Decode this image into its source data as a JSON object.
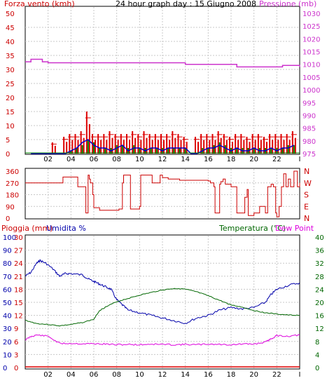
{
  "title": "24 hour graph day : 15 Giugno 2008",
  "colors": {
    "wind": "#dd0000",
    "gust": "#dd0000",
    "wind_avg": "#008800",
    "wind_speed_line": "#0000cc",
    "pressure": "#cc33cc",
    "direction": "#cc0000",
    "rain": "#dd0000",
    "humidity": "#0000aa",
    "temperature": "#006600",
    "dewpoint": "#dd00dd",
    "grid": "#c8c8c8"
  },
  "chart_data": [
    {
      "type": "bar",
      "title": "24 hour graph day : 15 Giugno 2008",
      "ylabel": "Forza vento (kmh)",
      "y2label": "Pressione (mb)",
      "ylim": [
        0,
        50
      ],
      "yticks": [
        "0",
        "5",
        "10",
        "15",
        "20",
        "25",
        "30",
        "35",
        "40",
        "45",
        "50"
      ],
      "y2lim": [
        975,
        1030
      ],
      "y2ticks": [
        "975",
        "980",
        "985",
        "990",
        "995",
        "1000",
        "1005",
        "1010",
        "1015",
        "1020",
        "1025",
        "1030"
      ],
      "xlim": [
        0,
        24
      ],
      "xticks": [
        "02",
        "04",
        "06",
        "08",
        "10",
        "12",
        "14",
        "16",
        "18",
        "20",
        "22"
      ],
      "x": [
        0.5,
        1,
        1.5,
        2,
        2.5,
        3,
        3.5,
        4,
        4.5,
        5,
        5.5,
        6,
        6.5,
        7,
        7.5,
        8,
        8.5,
        9,
        9.5,
        10,
        10.5,
        11,
        11.5,
        12,
        12.5,
        13,
        13.5,
        14,
        14.5,
        15,
        15.5,
        16,
        16.5,
        17,
        17.5,
        18,
        18.5,
        19,
        19.5,
        20,
        20.5,
        21,
        21.5,
        22,
        22.5,
        23,
        23.5
      ],
      "series": [
        {
          "name": "gust",
          "values": [
            0,
            0,
            0,
            0,
            4,
            0,
            6,
            7,
            7,
            8,
            15,
            7,
            7,
            7,
            8,
            7,
            7,
            7,
            8,
            7,
            8,
            7,
            7,
            7,
            7,
            8,
            7,
            6,
            0,
            6,
            7,
            7,
            7,
            8,
            7,
            6,
            7,
            7,
            6,
            7,
            7,
            6,
            7,
            7,
            7,
            7,
            8
          ]
        },
        {
          "name": "avg",
          "values": [
            0,
            0,
            0,
            0,
            0,
            0,
            0,
            1,
            2,
            3,
            5,
            4,
            2,
            2,
            2,
            3,
            3,
            2,
            3,
            2,
            2,
            2,
            2,
            2,
            2,
            2,
            2,
            2,
            0,
            0,
            2,
            2,
            3,
            4,
            3,
            2,
            2,
            2,
            2,
            2,
            2,
            2,
            2,
            2,
            2,
            3,
            3
          ]
        },
        {
          "name": "speed",
          "values": [
            0,
            0,
            0,
            0,
            0,
            0,
            0,
            1,
            2,
            4,
            5,
            3,
            2,
            2,
            1,
            2,
            3,
            1,
            2,
            2,
            1,
            2,
            2,
            1,
            2,
            2,
            2,
            2,
            0,
            0,
            1,
            2,
            2,
            3,
            2,
            1,
            2,
            1,
            1,
            2,
            1,
            1,
            2,
            1,
            2,
            2,
            3
          ]
        }
      ],
      "pressure": {
        "x": [
          0,
          0.5,
          1,
          1.5,
          2,
          5,
          10,
          13.5,
          14,
          18,
          18.5,
          22,
          22.5,
          23.5,
          24
        ],
        "values": [
          1011,
          1012,
          1012,
          1011,
          1010.6,
          1010.6,
          1010.6,
          1010.6,
          1010,
          1010,
          1009,
          1009,
          1009.6,
          1009.6,
          1009
        ]
      }
    },
    {
      "type": "line",
      "title": "",
      "ylabel": "",
      "ylim": [
        0,
        360
      ],
      "yticks": [
        "0",
        "90",
        "180",
        "270",
        "360"
      ],
      "y2ticks": [
        "N",
        "E",
        "S",
        "W",
        "N"
      ],
      "xlim": [
        0,
        24
      ],
      "series": [
        {
          "name": "direction",
          "x": [
            0,
            3,
            3.3,
            4.5,
            4.6,
            5.2,
            5.3,
            5.5,
            5.6,
            5.7,
            5.9,
            6,
            6.5,
            8,
            8.2,
            8.5,
            8.6,
            9.1,
            9.2,
            9.9,
            10,
            10.1,
            11,
            11.1,
            11.7,
            11.8,
            12,
            12.5,
            13.5,
            14,
            15,
            16,
            16.2,
            16.5,
            16.6,
            17,
            17.1,
            17.3,
            17.5,
            18,
            18.5,
            19,
            19.2,
            19.4,
            19.5,
            20,
            20.5,
            21,
            21.2,
            21.5,
            21.7,
            21.9,
            22,
            22.2,
            22.4,
            22.6,
            22.8,
            23,
            23.2,
            23.5,
            23.8,
            24
          ],
          "values": [
            270,
            270,
            315,
            315,
            240,
            240,
            40,
            330,
            300,
            270,
            180,
            80,
            60,
            60,
            70,
            270,
            330,
            330,
            70,
            70,
            90,
            330,
            330,
            270,
            270,
            330,
            310,
            300,
            290,
            290,
            290,
            285,
            270,
            240,
            40,
            260,
            280,
            300,
            260,
            240,
            40,
            40,
            160,
            220,
            20,
            40,
            90,
            40,
            240,
            260,
            240,
            40,
            10,
            90,
            240,
            340,
            240,
            300,
            240,
            360,
            240,
            270
          ]
        }
      ]
    },
    {
      "type": "line",
      "title": "",
      "ylabel_left1": "Pioggia (mm)",
      "ylabel_left2": "Umidita %",
      "ylabel_right1": "Temperatura (°C)",
      "ylabel_right2": "Dew Point",
      "rain_ticks": [
        "0",
        "3",
        "6",
        "9",
        "12",
        "15",
        "18",
        "21",
        "24",
        "27",
        "30"
      ],
      "humidity_ticks": [
        "0",
        "10",
        "20",
        "30",
        "40",
        "50",
        "60",
        "70",
        "80",
        "90",
        "100"
      ],
      "temp_ticks": [
        "0",
        "4",
        "8",
        "12",
        "16",
        "20",
        "24",
        "28",
        "32",
        "36",
        "40"
      ],
      "xlim": [
        0,
        24
      ],
      "temp_lim": [
        0,
        40
      ],
      "series": [
        {
          "name": "humidity",
          "x": [
            0,
            0.5,
            1,
            1.3,
            1.8,
            2.5,
            3,
            3.5,
            4,
            5,
            5.5,
            6,
            6.5,
            7,
            7.5,
            8,
            8.5,
            9,
            10,
            11,
            12,
            13,
            14,
            15,
            16,
            17,
            18,
            19,
            20,
            21,
            21.5,
            22,
            23,
            24
          ],
          "values": [
            70,
            73,
            80,
            82,
            80,
            75,
            70,
            72,
            72,
            71,
            68,
            66,
            64,
            62,
            60,
            52,
            48,
            44,
            42,
            40,
            38,
            36,
            34,
            38,
            40,
            44,
            46,
            45,
            46,
            50,
            56,
            60,
            63,
            65
          ]
        },
        {
          "name": "temperature",
          "x": [
            0,
            1,
            2,
            3,
            4,
            5,
            6,
            6.5,
            7,
            8,
            9,
            10,
            11,
            12,
            13,
            13.5,
            14,
            15,
            16,
            17,
            18,
            19,
            20,
            21,
            22,
            23,
            24
          ],
          "values": [
            14.5,
            13.5,
            13.2,
            12.8,
            13.2,
            13.8,
            14.8,
            17.5,
            18.5,
            20.2,
            21.2,
            22.2,
            23.0,
            23.8,
            24.2,
            24.2,
            24.0,
            23.2,
            22.0,
            20.6,
            19.2,
            18.5,
            17.5,
            16.8,
            16.4,
            16.1,
            16.0
          ]
        },
        {
          "name": "dewpoint",
          "x": [
            0,
            0.5,
            1,
            2,
            3,
            4,
            5,
            6,
            7,
            8,
            9,
            10,
            11,
            12,
            13,
            14,
            15,
            16,
            17,
            18,
            19,
            20,
            21,
            21.5,
            22,
            23,
            24
          ],
          "values": [
            8.5,
            9.5,
            10.0,
            9.6,
            7.4,
            7.4,
            7.3,
            7.3,
            7.2,
            7.0,
            7.1,
            7.0,
            7.2,
            7.1,
            7.0,
            7.1,
            7.0,
            7.2,
            7.1,
            7.0,
            7.2,
            7.2,
            7.8,
            8.8,
            9.8,
            9.6,
            10.0
          ]
        },
        {
          "name": "rain",
          "x": [
            0,
            24
          ],
          "values": [
            0,
            0
          ]
        }
      ]
    }
  ]
}
